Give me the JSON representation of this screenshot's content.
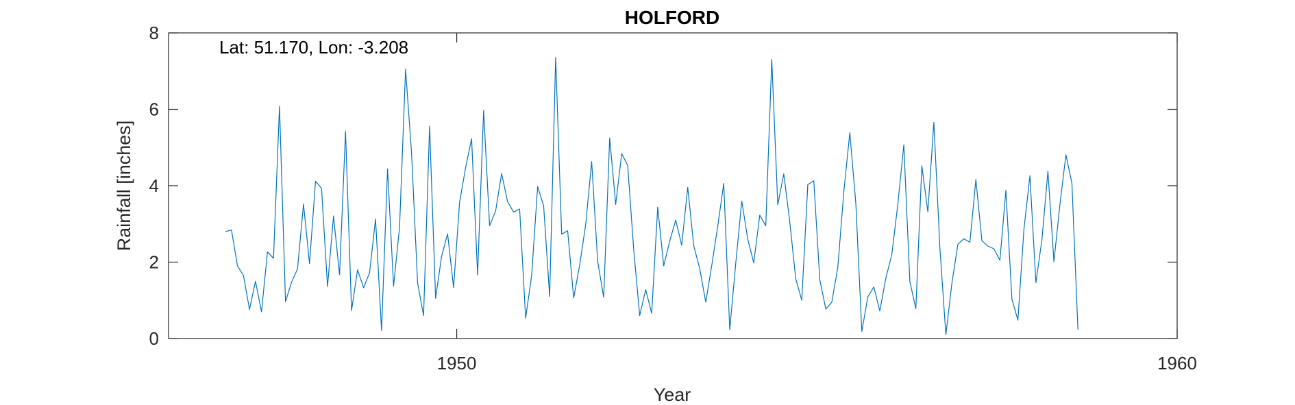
{
  "chart_data": {
    "type": "line",
    "title": "HOLFORD",
    "xlabel": "Year",
    "ylabel": "Rainfall [inches]",
    "annotation": "Lat: 51.170, Lon: -3.208",
    "xlim": [
      1946.0,
      1960.0
    ],
    "ylim": [
      0,
      8
    ],
    "xticks": [
      1950,
      1960
    ],
    "yticks": [
      0,
      2,
      4,
      6,
      8
    ],
    "grid": false,
    "line_color": "#0072BD",
    "series": [
      {
        "x_start": 1946.79,
        "x_step": 0.08333,
        "values": [
          2.8,
          2.84,
          1.9,
          1.65,
          0.76,
          1.5,
          0.7,
          2.27,
          2.1,
          6.08,
          0.96,
          1.47,
          1.82,
          3.52,
          1.96,
          4.12,
          3.93,
          1.36,
          3.21,
          1.67,
          5.42,
          0.73,
          1.8,
          1.33,
          1.72,
          3.13,
          0.21,
          4.44,
          1.37,
          2.92,
          7.05,
          4.85,
          1.46,
          0.6,
          5.56,
          1.05,
          2.15,
          2.74,
          1.33,
          3.57,
          4.47,
          5.23,
          1.66,
          5.97,
          2.95,
          3.34,
          4.32,
          3.58,
          3.31,
          3.39,
          0.53,
          1.65,
          3.98,
          3.47,
          1.1,
          7.36,
          2.73,
          2.82,
          1.06,
          1.92,
          2.98,
          4.63,
          2.02,
          1.08,
          5.25,
          3.51,
          4.84,
          4.53,
          2.33,
          0.6,
          1.28,
          0.66,
          3.44,
          1.9,
          2.55,
          3.1,
          2.44,
          3.96,
          2.43,
          1.83,
          0.95,
          1.91,
          2.94,
          4.06,
          0.23,
          1.97,
          3.6,
          2.6,
          1.98,
          3.23,
          2.95,
          7.31,
          3.5,
          4.31,
          3.05,
          1.56,
          1.0,
          4.03,
          4.13,
          1.54,
          0.77,
          0.95,
          1.86,
          3.84,
          5.39,
          3.54,
          0.18,
          1.09,
          1.35,
          0.72,
          1.58,
          2.2,
          3.52,
          5.07,
          1.49,
          0.78,
          4.52,
          3.32,
          5.66,
          2.38,
          0.1,
          1.44,
          2.47,
          2.61,
          2.52,
          4.16,
          2.56,
          2.42,
          2.35,
          2.05,
          3.88,
          1.03,
          0.48,
          2.85,
          4.26,
          1.46,
          2.59,
          4.38,
          2.01,
          3.51,
          4.81,
          4.06,
          0.23
        ]
      }
    ]
  }
}
